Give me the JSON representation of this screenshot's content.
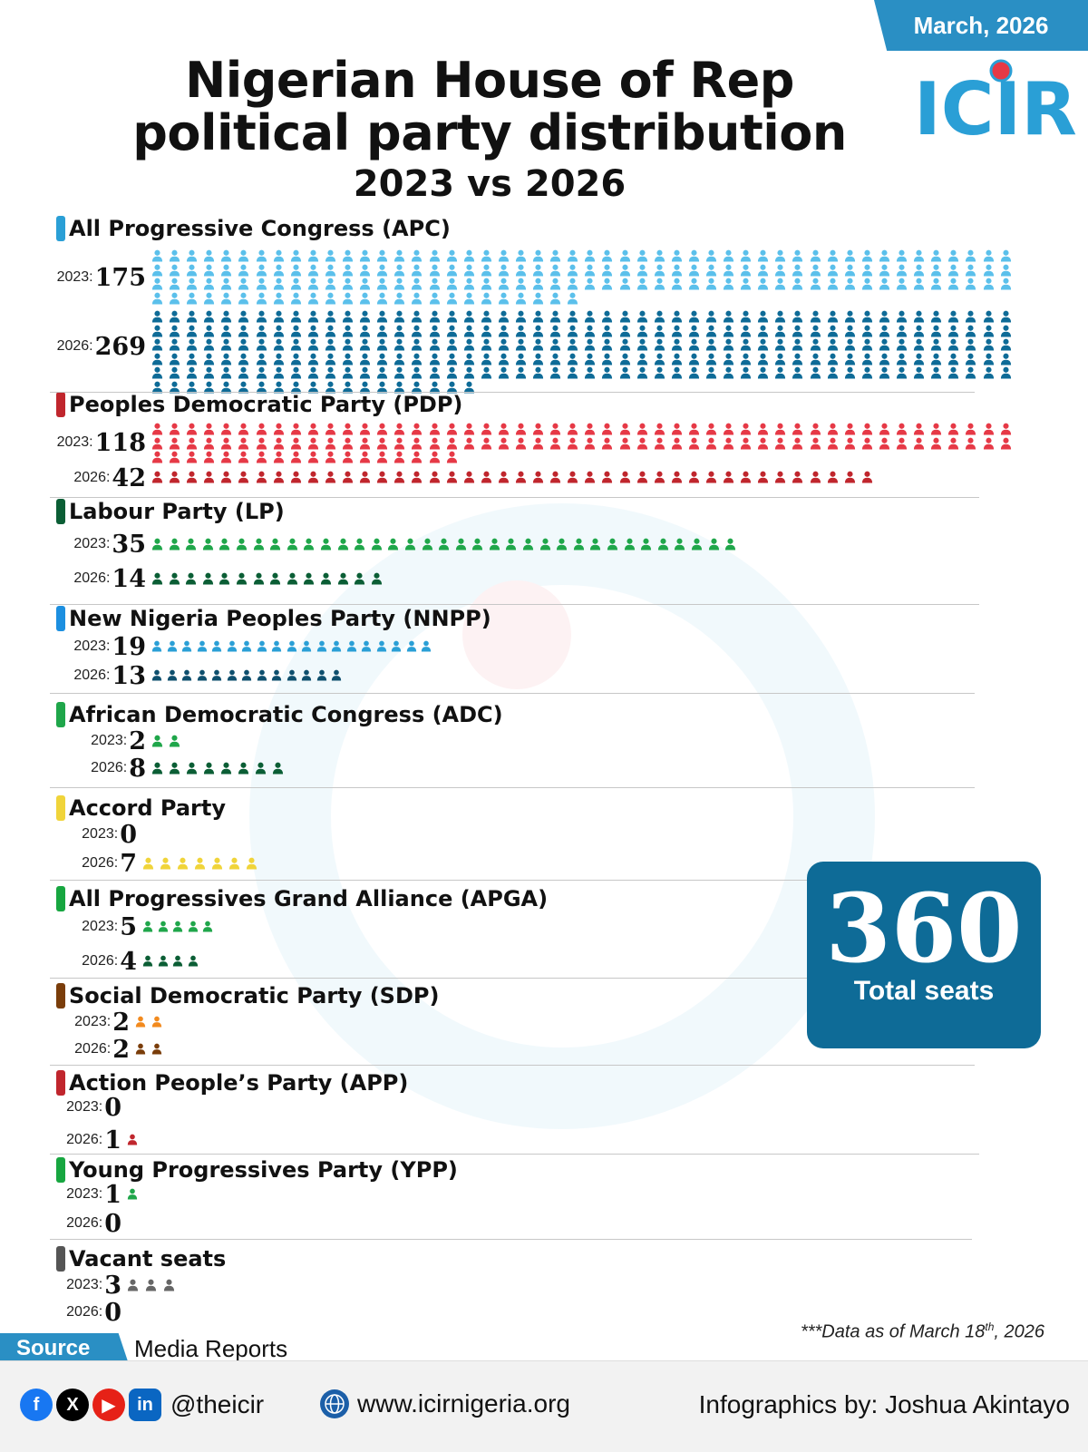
{
  "header": {
    "date_badge": "March, 2026",
    "title_line1": "Nigerian House of Rep",
    "title_line2": "political party distribution",
    "subtitle": "2023 vs 2026",
    "logo_text": "ICIR"
  },
  "colors": {
    "accent": "#2a8fc4",
    "total_box": "#0e6b97"
  },
  "chart_data": {
    "type": "pictogram",
    "title": "Nigerian House of Rep political party distribution",
    "subtitle": "2023 vs 2026",
    "categories": [
      "2023",
      "2026"
    ],
    "parties": [
      {
        "name": "All Progressive Congress (APC)",
        "bar_color": "#2a9fd6",
        "values": [
          175,
          269
        ],
        "colors": [
          "#5bc0eb",
          "#0e6b97"
        ]
      },
      {
        "name": "Peoples Democratic Party (PDP)",
        "bar_color": "#c0262d",
        "values": [
          118,
          42
        ],
        "colors": [
          "#e63946",
          "#c0262d"
        ]
      },
      {
        "name": "Labour Party (LP)",
        "bar_color": "#0b5e35",
        "values": [
          35,
          14
        ],
        "colors": [
          "#1fa64a",
          "#0b5e35"
        ]
      },
      {
        "name": "New Nigeria Peoples Party (NNPP)",
        "bar_color": "#1c8fe0",
        "values": [
          19,
          13
        ],
        "colors": [
          "#2a9fd6",
          "#0e4f6e"
        ]
      },
      {
        "name": "African Democratic Congress (ADC)",
        "bar_color": "#1fa64a",
        "values": [
          2,
          8
        ],
        "colors": [
          "#1fa64a",
          "#0b5e35"
        ]
      },
      {
        "name": "Accord Party",
        "bar_color": "#f0d43a",
        "values": [
          0,
          7
        ],
        "colors": [
          "#f0d43a",
          "#f0d43a"
        ]
      },
      {
        "name": "All Progressives Grand Alliance (APGA)",
        "bar_color": "#17a640",
        "values": [
          5,
          4
        ],
        "colors": [
          "#1fa64a",
          "#0b5e35"
        ]
      },
      {
        "name": "Social Democratic Party (SDP)",
        "bar_color": "#7a3d0a",
        "values": [
          2,
          2
        ],
        "colors": [
          "#f28a1e",
          "#7a3d0a"
        ]
      },
      {
        "name": "Action People’s Party (APP)",
        "bar_color": "#c0262d",
        "values": [
          0,
          1
        ],
        "colors": [
          "#c0262d",
          "#c0262d"
        ]
      },
      {
        "name": "Young Progressives Party (YPP)",
        "bar_color": "#17a640",
        "values": [
          1,
          0
        ],
        "colors": [
          "#1fa64a",
          "#1fa64a"
        ]
      },
      {
        "name": "Vacant seats",
        "bar_color": "#555555",
        "values": [
          3,
          0
        ],
        "colors": [
          "#666666",
          "#666666"
        ]
      }
    ]
  },
  "total": {
    "value": "360",
    "label": "Total seats"
  },
  "note": {
    "prefix": "***Data as of March 18",
    "sup": "th",
    "suffix": ", 2026"
  },
  "source": {
    "label": "Source",
    "text": "Media Reports"
  },
  "footer": {
    "handle": "@theicir",
    "website": "www.icirnigeria.org",
    "credit": "Infographics by: Joshua Akintayo"
  }
}
